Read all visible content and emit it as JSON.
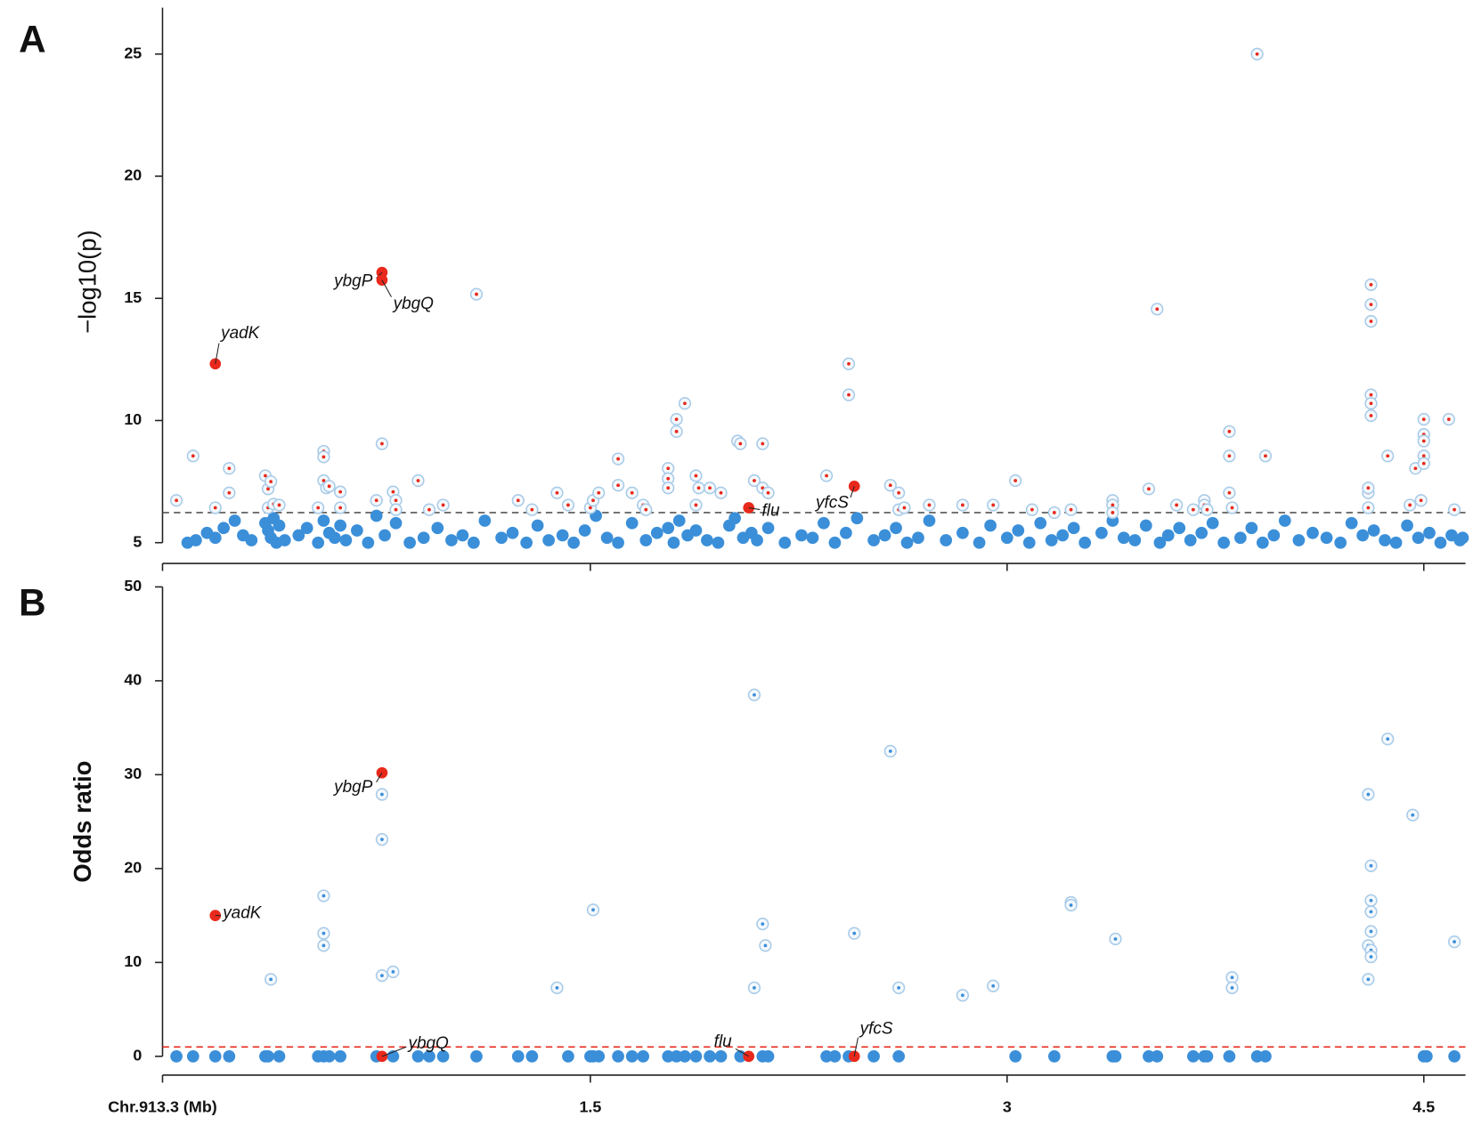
{
  "chart_data": [
    {
      "type": "scatter",
      "panel_label": "A",
      "ylabel": "−log10(p)",
      "xlim": [
        -0.04,
        4.65
      ],
      "xticks": [
        -0.04,
        1.5,
        3,
        4.5
      ],
      "xtick_labels": false,
      "ylim": [
        4.15,
        26.9
      ],
      "yticks": [
        5,
        10,
        15,
        20,
        25
      ],
      "threshold": 6.23,
      "threshold_color": "#555555",
      "series": [
        {
          "marker": "dot",
          "color": "#3b8fd9",
          "x": [
            0.05,
            0.08,
            0.12,
            0.15,
            0.18,
            0.22,
            0.25,
            0.28,
            0.33,
            0.34,
            0.35,
            0.36,
            0.37,
            0.38,
            0.4,
            0.45,
            0.48,
            0.52,
            0.54,
            0.56,
            0.58,
            0.6,
            0.62,
            0.66,
            0.7,
            0.73,
            0.76,
            0.8,
            0.85,
            0.9,
            0.95,
            1.0,
            1.04,
            1.08,
            1.12,
            1.18,
            1.22,
            1.27,
            1.31,
            1.35,
            1.4,
            1.44,
            1.48,
            1.52,
            1.56,
            1.6,
            1.65,
            1.7,
            1.74,
            1.78,
            1.8,
            1.82,
            1.85,
            1.88,
            1.92,
            1.96,
            2.0,
            2.02,
            2.05,
            2.08,
            2.1,
            2.14,
            2.2,
            2.26,
            2.3,
            2.34,
            2.38,
            2.42,
            2.46,
            2.52,
            2.56,
            2.6,
            2.64,
            2.68,
            2.72,
            2.78,
            2.84,
            2.9,
            2.94,
            3.0,
            3.04,
            3.08,
            3.12,
            3.16,
            3.2,
            3.24,
            3.28,
            3.34,
            3.38,
            3.42,
            3.46,
            3.5,
            3.55,
            3.58,
            3.62,
            3.66,
            3.7,
            3.74,
            3.78,
            3.84,
            3.88,
            3.92,
            3.96,
            4.0,
            4.05,
            4.1,
            4.15,
            4.2,
            4.24,
            4.28,
            4.32,
            4.36,
            4.4,
            4.44,
            4.48,
            4.52,
            4.56,
            4.6,
            4.63,
            4.64
          ],
          "values": [
            5.0,
            5.1,
            5.4,
            5.2,
            5.6,
            5.9,
            5.3,
            5.1,
            5.8,
            5.5,
            5.2,
            6.0,
            5.0,
            5.7,
            5.1,
            5.3,
            5.6,
            5.0,
            5.9,
            5.4,
            5.2,
            5.7,
            5.1,
            5.5,
            5.0,
            6.1,
            5.3,
            5.8,
            5.0,
            5.2,
            5.6,
            5.1,
            5.3,
            5.0,
            5.9,
            5.2,
            5.4,
            5.0,
            5.7,
            5.1,
            5.3,
            5.0,
            5.5,
            6.1,
            5.2,
            5.0,
            5.8,
            5.1,
            5.4,
            5.6,
            5.0,
            5.9,
            5.3,
            5.5,
            5.1,
            5.0,
            5.7,
            6.0,
            5.2,
            5.4,
            5.1,
            5.6,
            5.0,
            5.3,
            5.2,
            5.8,
            5.0,
            5.4,
            6.0,
            5.1,
            5.3,
            5.6,
            5.0,
            5.2,
            5.9,
            5.1,
            5.4,
            5.0,
            5.7,
            5.2,
            5.5,
            5.0,
            5.8,
            5.1,
            5.3,
            5.6,
            5.0,
            5.4,
            5.9,
            5.2,
            5.1,
            5.7,
            5.0,
            5.3,
            5.6,
            5.1,
            5.4,
            5.8,
            5.0,
            5.2,
            5.6,
            5.0,
            5.3,
            5.9,
            5.1,
            5.4,
            5.2,
            5.0,
            5.8,
            5.3,
            5.5,
            5.1,
            5.0,
            5.7,
            5.2,
            5.4,
            5.0,
            5.3,
            5.1,
            5.2
          ]
        },
        {
          "marker": "ring",
          "color": "#a9cbe8",
          "dot_color": "#e8291c",
          "x": [
            0.01,
            0.07,
            0.15,
            0.2,
            0.2,
            0.33,
            0.34,
            0.35,
            0.34,
            0.36,
            0.38,
            0.54,
            0.54,
            0.54,
            0.55,
            0.56,
            0.6,
            0.52,
            0.6,
            0.73,
            0.75,
            0.79,
            0.8,
            0.8,
            0.88,
            0.92,
            0.97,
            1.09,
            1.24,
            1.29,
            1.38,
            1.42,
            1.5,
            1.51,
            1.53,
            1.6,
            1.6,
            1.65,
            1.69,
            1.7,
            1.78,
            1.78,
            1.78,
            1.81,
            1.81,
            1.84,
            1.88,
            1.89,
            1.88,
            1.93,
            1.97,
            2.03,
            2.04,
            2.09,
            2.12,
            2.12,
            2.14,
            2.35,
            2.43,
            2.43,
            2.58,
            2.61,
            2.61,
            2.63,
            2.72,
            2.84,
            2.95,
            3.03,
            3.09,
            3.17,
            3.23,
            3.38,
            3.38,
            3.38,
            3.51,
            3.54,
            3.61,
            3.67,
            3.71,
            3.71,
            3.72,
            3.8,
            3.8,
            3.8,
            3.81,
            3.93,
            4.3,
            4.3,
            4.3,
            4.31,
            4.31,
            4.31,
            4.31,
            4.31,
            4.31,
            4.37,
            4.45,
            4.47,
            4.49,
            4.5,
            4.5,
            4.5,
            4.5,
            4.5,
            4.59,
            4.61,
            3.9
          ],
          "values": [
            6.73,
            8.55,
            6.43,
            8.04,
            7.04,
            7.74,
            7.2,
            7.5,
            6.43,
            6.58,
            6.54,
            8.74,
            8.51,
            7.54,
            7.24,
            7.31,
            7.08,
            6.43,
            6.43,
            6.73,
            9.05,
            7.08,
            6.73,
            6.35,
            7.54,
            6.35,
            6.54,
            15.17,
            6.73,
            6.35,
            7.04,
            6.54,
            6.43,
            6.73,
            7.04,
            8.43,
            7.35,
            7.04,
            6.54,
            6.35,
            8.04,
            7.62,
            7.24,
            10.05,
            9.55,
            10.7,
            7.74,
            7.24,
            6.54,
            7.24,
            7.04,
            9.16,
            9.05,
            7.54,
            9.05,
            7.24,
            7.04,
            7.74,
            12.32,
            11.05,
            7.35,
            7.04,
            6.35,
            6.43,
            6.54,
            6.54,
            6.54,
            7.54,
            6.35,
            6.23,
            6.35,
            6.73,
            6.54,
            6.23,
            7.2,
            14.56,
            6.54,
            6.35,
            6.73,
            6.54,
            6.35,
            9.55,
            8.55,
            7.04,
            6.43,
            8.55,
            7.04,
            7.24,
            6.43,
            15.56,
            14.75,
            14.06,
            11.05,
            10.7,
            10.2,
            8.55,
            6.54,
            8.04,
            6.73,
            8.55,
            9.43,
            9.16,
            8.24,
            10.05,
            10.05,
            6.35,
            25.0
          ]
        },
        {
          "marker": "highlight",
          "color": "#e8291c",
          "x": [
            0.15,
            0.75,
            0.75,
            2.07,
            2.45
          ],
          "values": [
            12.32,
            16.06,
            15.75,
            6.43,
            7.31
          ],
          "labels": [
            "yadK",
            "ybgP",
            "ybgQ",
            "flu",
            "yfcS"
          ]
        }
      ]
    },
    {
      "type": "scatter",
      "panel_label": "B",
      "ylabel": "Odds ratio",
      "xlim": [
        -0.04,
        4.65
      ],
      "xticks": [
        {
          "value": -0.04,
          "label": "Chr.913.3 (Mb)"
        },
        1.5,
        3,
        4.5
      ],
      "xtick_labels": true,
      "ylim": [
        -2,
        50
      ],
      "yticks": [
        0,
        10,
        20,
        30,
        40,
        50
      ],
      "threshold": 1,
      "threshold_color": "#e8291c",
      "series": [
        {
          "marker": "dot",
          "color": "#3b8fd9",
          "x": [
            0.01,
            0.07,
            0.15,
            0.2,
            0.33,
            0.34,
            0.38,
            0.52,
            0.54,
            0.56,
            0.6,
            0.73,
            0.79,
            0.88,
            0.92,
            0.97,
            1.09,
            1.24,
            1.29,
            1.42,
            1.5,
            1.51,
            1.53,
            1.6,
            1.65,
            1.69,
            1.78,
            1.81,
            1.84,
            1.88,
            1.93,
            1.97,
            2.04,
            2.12,
            2.14,
            2.35,
            2.38,
            2.43,
            2.52,
            2.61,
            3.03,
            3.17,
            3.38,
            3.39,
            3.51,
            3.54,
            3.67,
            3.71,
            3.72,
            3.8,
            3.9,
            3.93,
            4.5,
            4.51,
            4.61
          ],
          "values": [
            0,
            0,
            0,
            0,
            0,
            0,
            0,
            0,
            0,
            0,
            0,
            0,
            0,
            0,
            0,
            0,
            0,
            0,
            0,
            0,
            0,
            0,
            0,
            0,
            0,
            0,
            0,
            0,
            0,
            0,
            0,
            0,
            0,
            0,
            0,
            0,
            0,
            0,
            0,
            0,
            0,
            0,
            0,
            0,
            0,
            0,
            0,
            0,
            0,
            0,
            0,
            0,
            0,
            0,
            0
          ]
        },
        {
          "marker": "ring",
          "color": "#a9cbe8",
          "dot_color": "#3b8fd9",
          "x": [
            0.35,
            0.54,
            0.54,
            0.54,
            0.75,
            0.75,
            0.75,
            0.79,
            1.38,
            1.51,
            2.09,
            2.09,
            2.12,
            2.13,
            2.45,
            2.58,
            2.61,
            2.84,
            2.95,
            3.23,
            3.23,
            3.39,
            3.81,
            3.81,
            4.3,
            4.3,
            4.3,
            4.31,
            4.31,
            4.31,
            4.31,
            4.31,
            4.31,
            4.37,
            4.46,
            4.61
          ],
          "values": [
            8.2,
            17.1,
            13.1,
            11.8,
            27.9,
            23.1,
            8.6,
            9.0,
            7.3,
            15.6,
            38.5,
            7.3,
            14.1,
            11.8,
            13.1,
            32.5,
            7.3,
            6.5,
            7.5,
            16.4,
            16.1,
            12.5,
            8.4,
            7.3,
            27.9,
            8.2,
            11.8,
            20.3,
            16.6,
            15.4,
            13.3,
            11.3,
            10.6,
            33.8,
            25.7,
            12.2
          ]
        },
        {
          "marker": "highlight",
          "color": "#e8291c",
          "x": [
            0.15,
            0.75,
            0.75,
            2.07,
            2.45
          ],
          "values": [
            15.0,
            30.2,
            0,
            0,
            0
          ],
          "labels": [
            "yadK",
            "ybgP",
            "ybgQ",
            "flu",
            "yfcS"
          ]
        }
      ]
    }
  ]
}
